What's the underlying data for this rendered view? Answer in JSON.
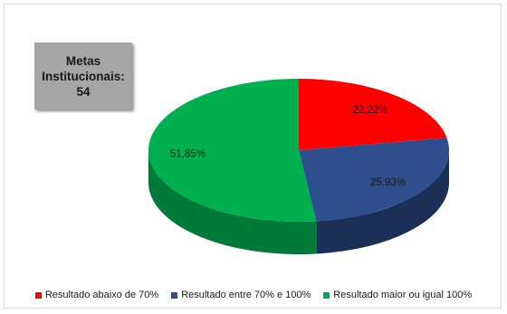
{
  "metas_box": {
    "line1": "Metas",
    "line2": "Institucionais:",
    "line3": "54"
  },
  "chart_data": {
    "type": "pie",
    "title": "",
    "series": [
      {
        "name": "Resultado abaixo de 70%",
        "value": 22.22,
        "label": "22,22%",
        "color": "#ff0000",
        "side_color": "#a80000"
      },
      {
        "name": "Resultado entre 70% e 100%",
        "value": 25.93,
        "label": "25,93%",
        "color": "#2e4e8e",
        "side_color": "#1b2f57"
      },
      {
        "name": "Resultado maior ou igual 100%",
        "value": 51.85,
        "label": "51,85%",
        "color": "#00b050",
        "side_color": "#007a38"
      }
    ],
    "legend_position": "bottom",
    "style": "3d"
  }
}
